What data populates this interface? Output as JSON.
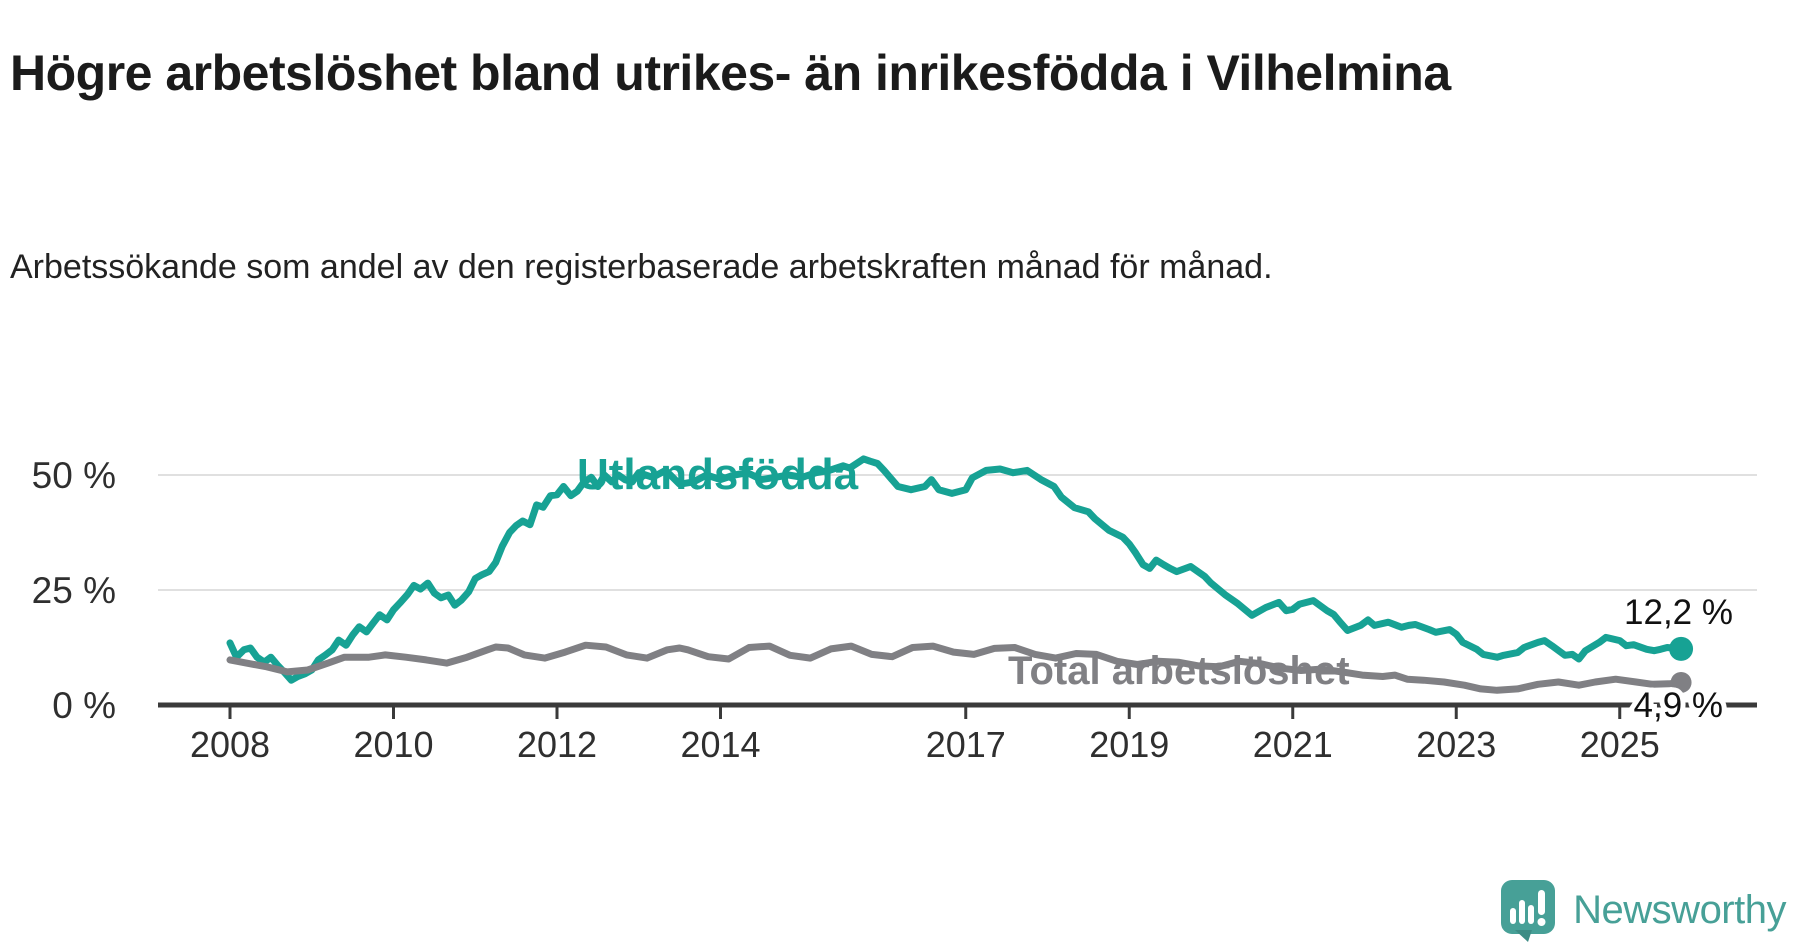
{
  "title": "Högre arbetslöshet bland utrikes- än inrikesfödda i Vilhelmina",
  "subtitle": "Arbetssökande som andel av den registerbaserade arbetskraften månad för månad.",
  "branding": {
    "name": "Newsworthy",
    "logo_icon": "bar-chart-speech-bubble",
    "color": "#47a097"
  },
  "chart_data": {
    "type": "line",
    "title": "Högre arbetslöshet bland utrikes- än inrikesfödda i Vilhelmina",
    "subtitle": "Arbetssökande som andel av den registerbaserade arbetskraften månad för månad.",
    "unit": "%",
    "grid": true,
    "legend_position": "inline-labels",
    "x_axis": {
      "label": "",
      "tick_years": [
        2008,
        2010,
        2012,
        2014,
        2017,
        2019,
        2021,
        2023,
        2025
      ],
      "range": [
        2008.0,
        2025.75
      ]
    },
    "y_axis": {
      "label": "",
      "tick_labels": [
        "0 %",
        "25 %",
        "50 %"
      ],
      "tick_values": [
        0,
        25,
        50
      ],
      "range": [
        0,
        68
      ]
    },
    "colors": {
      "grid": "#e0e0e0",
      "axis": "#3a3a3a",
      "tick_text": "#2f2f2f",
      "value_label_text": "#111111"
    },
    "series": [
      {
        "name": "Utlandsfödda",
        "color": "#17a294",
        "end_value": 12.2,
        "end_label": "12,2 %",
        "points": [
          [
            2008.0,
            13.5
          ],
          [
            2008.08,
            10.4
          ],
          [
            2008.17,
            12.0
          ],
          [
            2008.25,
            12.4
          ],
          [
            2008.33,
            10.4
          ],
          [
            2008.42,
            9.3
          ],
          [
            2008.5,
            10.4
          ],
          [
            2008.58,
            8.7
          ],
          [
            2008.67,
            7.0
          ],
          [
            2008.75,
            5.4
          ],
          [
            2008.83,
            6.2
          ],
          [
            2008.92,
            6.8
          ],
          [
            2009.0,
            7.6
          ],
          [
            2009.08,
            9.8
          ],
          [
            2009.17,
            10.9
          ],
          [
            2009.25,
            12.0
          ],
          [
            2009.33,
            14.1
          ],
          [
            2009.42,
            13.0
          ],
          [
            2009.5,
            15.2
          ],
          [
            2009.58,
            17.0
          ],
          [
            2009.67,
            15.9
          ],
          [
            2009.75,
            17.8
          ],
          [
            2009.83,
            19.6
          ],
          [
            2009.92,
            18.5
          ],
          [
            2010.0,
            20.7
          ],
          [
            2010.08,
            22.2
          ],
          [
            2010.17,
            24.0
          ],
          [
            2010.25,
            26.0
          ],
          [
            2010.33,
            25.2
          ],
          [
            2010.42,
            26.5
          ],
          [
            2010.5,
            24.3
          ],
          [
            2010.58,
            23.3
          ],
          [
            2010.67,
            23.9
          ],
          [
            2010.75,
            21.7
          ],
          [
            2010.83,
            22.8
          ],
          [
            2010.92,
            24.6
          ],
          [
            2011.0,
            27.5
          ],
          [
            2011.08,
            28.3
          ],
          [
            2011.17,
            29.0
          ],
          [
            2011.25,
            31.0
          ],
          [
            2011.33,
            34.5
          ],
          [
            2011.42,
            37.5
          ],
          [
            2011.5,
            39.0
          ],
          [
            2011.58,
            40.0
          ],
          [
            2011.67,
            39.2
          ],
          [
            2011.75,
            43.5
          ],
          [
            2011.83,
            43.0
          ],
          [
            2011.92,
            45.5
          ],
          [
            2012.0,
            45.7
          ],
          [
            2012.08,
            47.5
          ],
          [
            2012.17,
            45.5
          ],
          [
            2012.25,
            46.5
          ],
          [
            2012.33,
            48.5
          ],
          [
            2012.42,
            49.5
          ],
          [
            2012.5,
            47.5
          ],
          [
            2012.58,
            50.0
          ],
          [
            2012.67,
            48.5
          ],
          [
            2012.75,
            50.0
          ],
          [
            2012.83,
            49.0
          ],
          [
            2012.92,
            48.5
          ],
          [
            2013.0,
            50.5
          ],
          [
            2013.17,
            49.5
          ],
          [
            2013.33,
            51.0
          ],
          [
            2013.5,
            48.0
          ],
          [
            2013.67,
            48.5
          ],
          [
            2013.83,
            50.0
          ],
          [
            2014.0,
            49.0
          ],
          [
            2014.17,
            50.0
          ],
          [
            2014.33,
            50.5
          ],
          [
            2014.5,
            49.0
          ],
          [
            2014.67,
            49.5
          ],
          [
            2014.83,
            50.0
          ],
          [
            2015.0,
            49.5
          ],
          [
            2015.17,
            50.5
          ],
          [
            2015.33,
            51.0
          ],
          [
            2015.5,
            52.0
          ],
          [
            2015.58,
            51.5
          ],
          [
            2015.75,
            53.5
          ],
          [
            2015.83,
            53.0
          ],
          [
            2015.92,
            52.5
          ],
          [
            2016.0,
            51.0
          ],
          [
            2016.17,
            47.5
          ],
          [
            2016.33,
            46.8
          ],
          [
            2016.5,
            47.5
          ],
          [
            2016.58,
            49.0
          ],
          [
            2016.67,
            46.8
          ],
          [
            2016.83,
            46.0
          ],
          [
            2017.0,
            46.8
          ],
          [
            2017.08,
            49.4
          ],
          [
            2017.25,
            51.0
          ],
          [
            2017.42,
            51.3
          ],
          [
            2017.58,
            50.5
          ],
          [
            2017.75,
            51.0
          ],
          [
            2017.92,
            49.0
          ],
          [
            2018.08,
            47.5
          ],
          [
            2018.17,
            45.2
          ],
          [
            2018.33,
            42.9
          ],
          [
            2018.5,
            42.0
          ],
          [
            2018.58,
            40.5
          ],
          [
            2018.75,
            38.0
          ],
          [
            2018.92,
            36.5
          ],
          [
            2019.0,
            35.0
          ],
          [
            2019.08,
            33.0
          ],
          [
            2019.17,
            30.5
          ],
          [
            2019.25,
            29.7
          ],
          [
            2019.33,
            31.5
          ],
          [
            2019.42,
            30.5
          ],
          [
            2019.5,
            29.7
          ],
          [
            2019.58,
            29.0
          ],
          [
            2019.75,
            30.1
          ],
          [
            2019.92,
            28.0
          ],
          [
            2020.0,
            26.5
          ],
          [
            2020.17,
            24.0
          ],
          [
            2020.33,
            22.0
          ],
          [
            2020.5,
            19.5
          ],
          [
            2020.67,
            21.2
          ],
          [
            2020.83,
            22.3
          ],
          [
            2020.92,
            20.5
          ],
          [
            2021.0,
            20.8
          ],
          [
            2021.08,
            21.9
          ],
          [
            2021.25,
            22.7
          ],
          [
            2021.42,
            20.5
          ],
          [
            2021.5,
            19.7
          ],
          [
            2021.58,
            18.0
          ],
          [
            2021.67,
            16.2
          ],
          [
            2021.83,
            17.3
          ],
          [
            2021.92,
            18.5
          ],
          [
            2022.0,
            17.3
          ],
          [
            2022.17,
            18.0
          ],
          [
            2022.33,
            16.9
          ],
          [
            2022.42,
            17.3
          ],
          [
            2022.5,
            17.5
          ],
          [
            2022.67,
            16.4
          ],
          [
            2022.75,
            15.8
          ],
          [
            2022.92,
            16.4
          ],
          [
            2023.0,
            15.4
          ],
          [
            2023.08,
            13.6
          ],
          [
            2023.25,
            12.1
          ],
          [
            2023.33,
            11.0
          ],
          [
            2023.5,
            10.4
          ],
          [
            2023.58,
            10.8
          ],
          [
            2023.75,
            11.4
          ],
          [
            2023.83,
            12.5
          ],
          [
            2024.0,
            13.6
          ],
          [
            2024.08,
            14.0
          ],
          [
            2024.17,
            12.9
          ],
          [
            2024.33,
            10.8
          ],
          [
            2024.42,
            11.0
          ],
          [
            2024.5,
            10.0
          ],
          [
            2024.58,
            11.8
          ],
          [
            2024.75,
            13.6
          ],
          [
            2024.83,
            14.7
          ],
          [
            2025.0,
            14.0
          ],
          [
            2025.08,
            12.9
          ],
          [
            2025.17,
            13.1
          ],
          [
            2025.33,
            12.1
          ],
          [
            2025.42,
            11.8
          ],
          [
            2025.5,
            12.1
          ],
          [
            2025.58,
            12.5
          ],
          [
            2025.75,
            12.2
          ]
        ]
      },
      {
        "name": "Total arbetslöshet",
        "color": "#808084",
        "end_value": 4.9,
        "end_label": "4,9 %",
        "points": [
          [
            2008.0,
            9.8
          ],
          [
            2008.2,
            9.1
          ],
          [
            2008.45,
            8.3
          ],
          [
            2008.7,
            7.2
          ],
          [
            2008.95,
            7.6
          ],
          [
            2009.2,
            9.1
          ],
          [
            2009.4,
            10.4
          ],
          [
            2009.7,
            10.4
          ],
          [
            2009.9,
            10.9
          ],
          [
            2010.15,
            10.4
          ],
          [
            2010.4,
            9.8
          ],
          [
            2010.65,
            9.1
          ],
          [
            2010.9,
            10.4
          ],
          [
            2011.15,
            12.0
          ],
          [
            2011.25,
            12.6
          ],
          [
            2011.4,
            12.4
          ],
          [
            2011.6,
            10.9
          ],
          [
            2011.85,
            10.2
          ],
          [
            2012.1,
            11.5
          ],
          [
            2012.35,
            13.0
          ],
          [
            2012.6,
            12.6
          ],
          [
            2012.85,
            10.9
          ],
          [
            2013.1,
            10.2
          ],
          [
            2013.35,
            12.0
          ],
          [
            2013.5,
            12.4
          ],
          [
            2013.6,
            12.0
          ],
          [
            2013.85,
            10.5
          ],
          [
            2014.1,
            10.0
          ],
          [
            2014.35,
            12.5
          ],
          [
            2014.6,
            12.8
          ],
          [
            2014.85,
            10.8
          ],
          [
            2015.1,
            10.2
          ],
          [
            2015.35,
            12.2
          ],
          [
            2015.6,
            12.8
          ],
          [
            2015.85,
            11.0
          ],
          [
            2016.1,
            10.5
          ],
          [
            2016.35,
            12.5
          ],
          [
            2016.6,
            12.8
          ],
          [
            2016.85,
            11.5
          ],
          [
            2017.1,
            11.0
          ],
          [
            2017.35,
            12.3
          ],
          [
            2017.6,
            12.5
          ],
          [
            2017.85,
            11.0
          ],
          [
            2018.1,
            10.2
          ],
          [
            2018.35,
            11.2
          ],
          [
            2018.6,
            11.0
          ],
          [
            2018.85,
            9.5
          ],
          [
            2019.1,
            8.8
          ],
          [
            2019.35,
            9.5
          ],
          [
            2019.6,
            9.3
          ],
          [
            2019.85,
            8.5
          ],
          [
            2020.1,
            8.3
          ],
          [
            2020.35,
            9.5
          ],
          [
            2020.6,
            9.0
          ],
          [
            2020.85,
            8.0
          ],
          [
            2021.1,
            7.5
          ],
          [
            2021.35,
            7.8
          ],
          [
            2021.6,
            7.2
          ],
          [
            2021.85,
            6.5
          ],
          [
            2022.1,
            6.2
          ],
          [
            2022.25,
            6.5
          ],
          [
            2022.4,
            5.6
          ],
          [
            2022.6,
            5.4
          ],
          [
            2022.85,
            5.0
          ],
          [
            2023.1,
            4.3
          ],
          [
            2023.3,
            3.5
          ],
          [
            2023.5,
            3.2
          ],
          [
            2023.75,
            3.5
          ],
          [
            2024.0,
            4.5
          ],
          [
            2024.25,
            5.0
          ],
          [
            2024.5,
            4.3
          ],
          [
            2024.7,
            5.0
          ],
          [
            2024.95,
            5.6
          ],
          [
            2025.2,
            5.0
          ],
          [
            2025.4,
            4.5
          ],
          [
            2025.6,
            4.6
          ],
          [
            2025.75,
            4.9
          ]
        ]
      }
    ]
  }
}
